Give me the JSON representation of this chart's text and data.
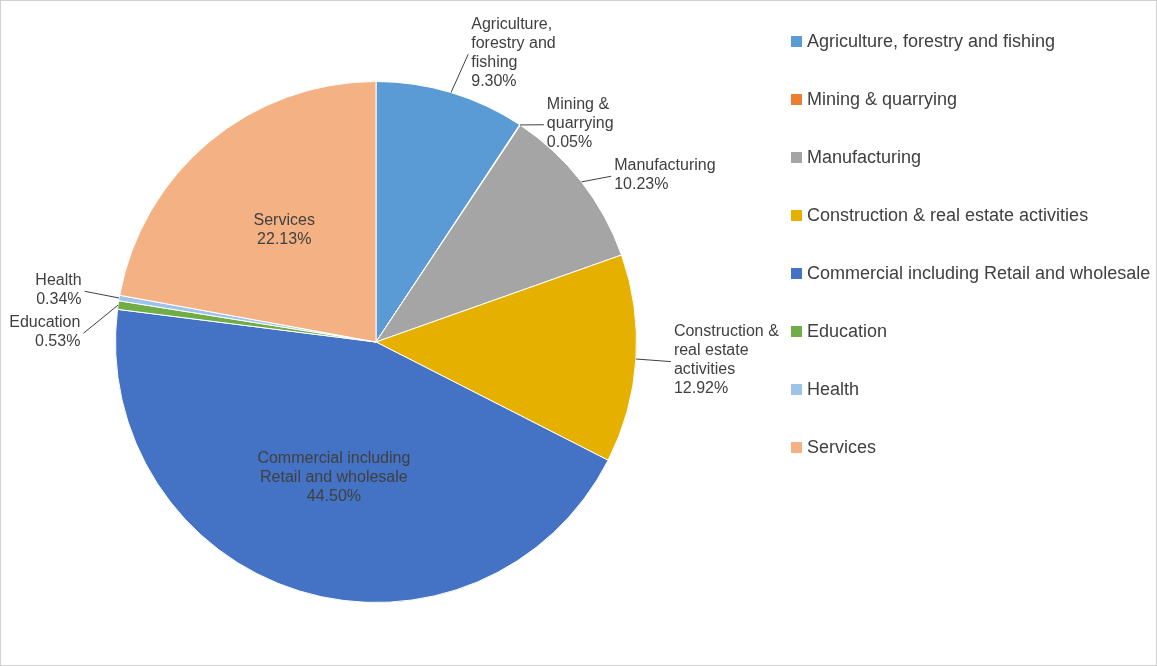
{
  "chart_data": {
    "type": "pie",
    "categories": [
      "Agriculture, forestry and fishing",
      "Mining & quarrying",
      "Manufacturing",
      "Construction & real estate activities",
      "Commercial including Retail and wholesale",
      "Education",
      "Health",
      "Services"
    ],
    "values": [
      9.3,
      0.05,
      10.23,
      12.92,
      44.5,
      0.53,
      0.34,
      22.13
    ],
    "value_labels": [
      "9.30%",
      "0.05%",
      "10.23%",
      "12.92%",
      "44.50%",
      "0.53%",
      "0.34%",
      "22.13%"
    ],
    "colors": [
      "#5b9bd5",
      "#ed7d31",
      "#a5a5a5",
      "#e6b000",
      "#4472c4",
      "#70ad47",
      "#9dc3e6",
      "#f4b183"
    ],
    "legend": "right"
  }
}
